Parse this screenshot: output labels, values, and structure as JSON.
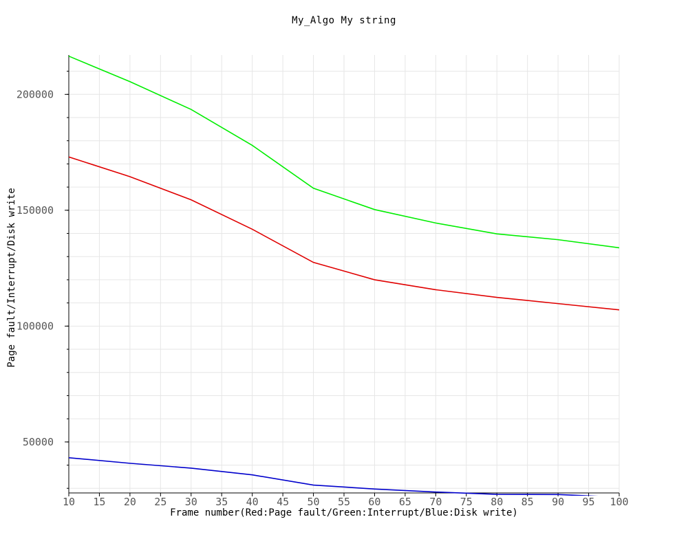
{
  "chart_data": {
    "type": "line",
    "title": "My_Algo My string",
    "xlabel": "Frame number(Red:Page fault/Green:Interrupt/Blue:Disk write)",
    "ylabel": "Page fault/Interrupt/Disk write",
    "xlim": [
      10,
      100
    ],
    "ylim": [
      28000,
      217000
    ],
    "x_ticks": [
      "10",
      "15",
      "20",
      "25",
      "30",
      "35",
      "40",
      "45",
      "50",
      "55",
      "60",
      "65",
      "70",
      "75",
      "80",
      "85",
      "90",
      "95",
      "100"
    ],
    "y_ticks": [
      "50000",
      "100000",
      "150000",
      "200000"
    ],
    "grid": true,
    "x": [
      10,
      20,
      30,
      40,
      50,
      60,
      70,
      80,
      90,
      100
    ],
    "series": [
      {
        "color": "#e00000",
        "values": [
          173000,
          164500,
          154500,
          141800,
          127500,
          120000,
          115700,
          112400,
          109700,
          107000
        ]
      },
      {
        "color": "#00ee00",
        "values": [
          216500,
          205500,
          193500,
          178000,
          159500,
          150300,
          144500,
          139800,
          137300,
          133800
        ]
      },
      {
        "color": "#0000cc",
        "values": [
          43200,
          40800,
          38700,
          35800,
          31400,
          29700,
          28400,
          27400,
          27300,
          26200
        ]
      }
    ]
  }
}
